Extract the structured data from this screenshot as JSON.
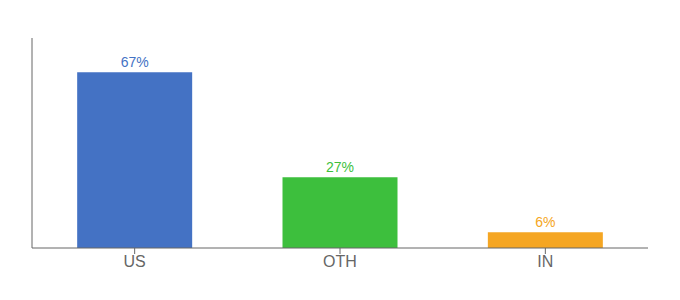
{
  "chart_data": {
    "type": "bar",
    "categories": [
      "US",
      "OTH",
      "IN"
    ],
    "values": [
      67,
      27,
      6
    ],
    "value_labels": [
      "67%",
      "27%",
      "6%"
    ],
    "colors": [
      "#4472c4",
      "#3dbf3d",
      "#f5a623"
    ],
    "ylim": [
      0,
      80
    ],
    "data_labels": true,
    "tick_labels": "x",
    "grid": false
  }
}
